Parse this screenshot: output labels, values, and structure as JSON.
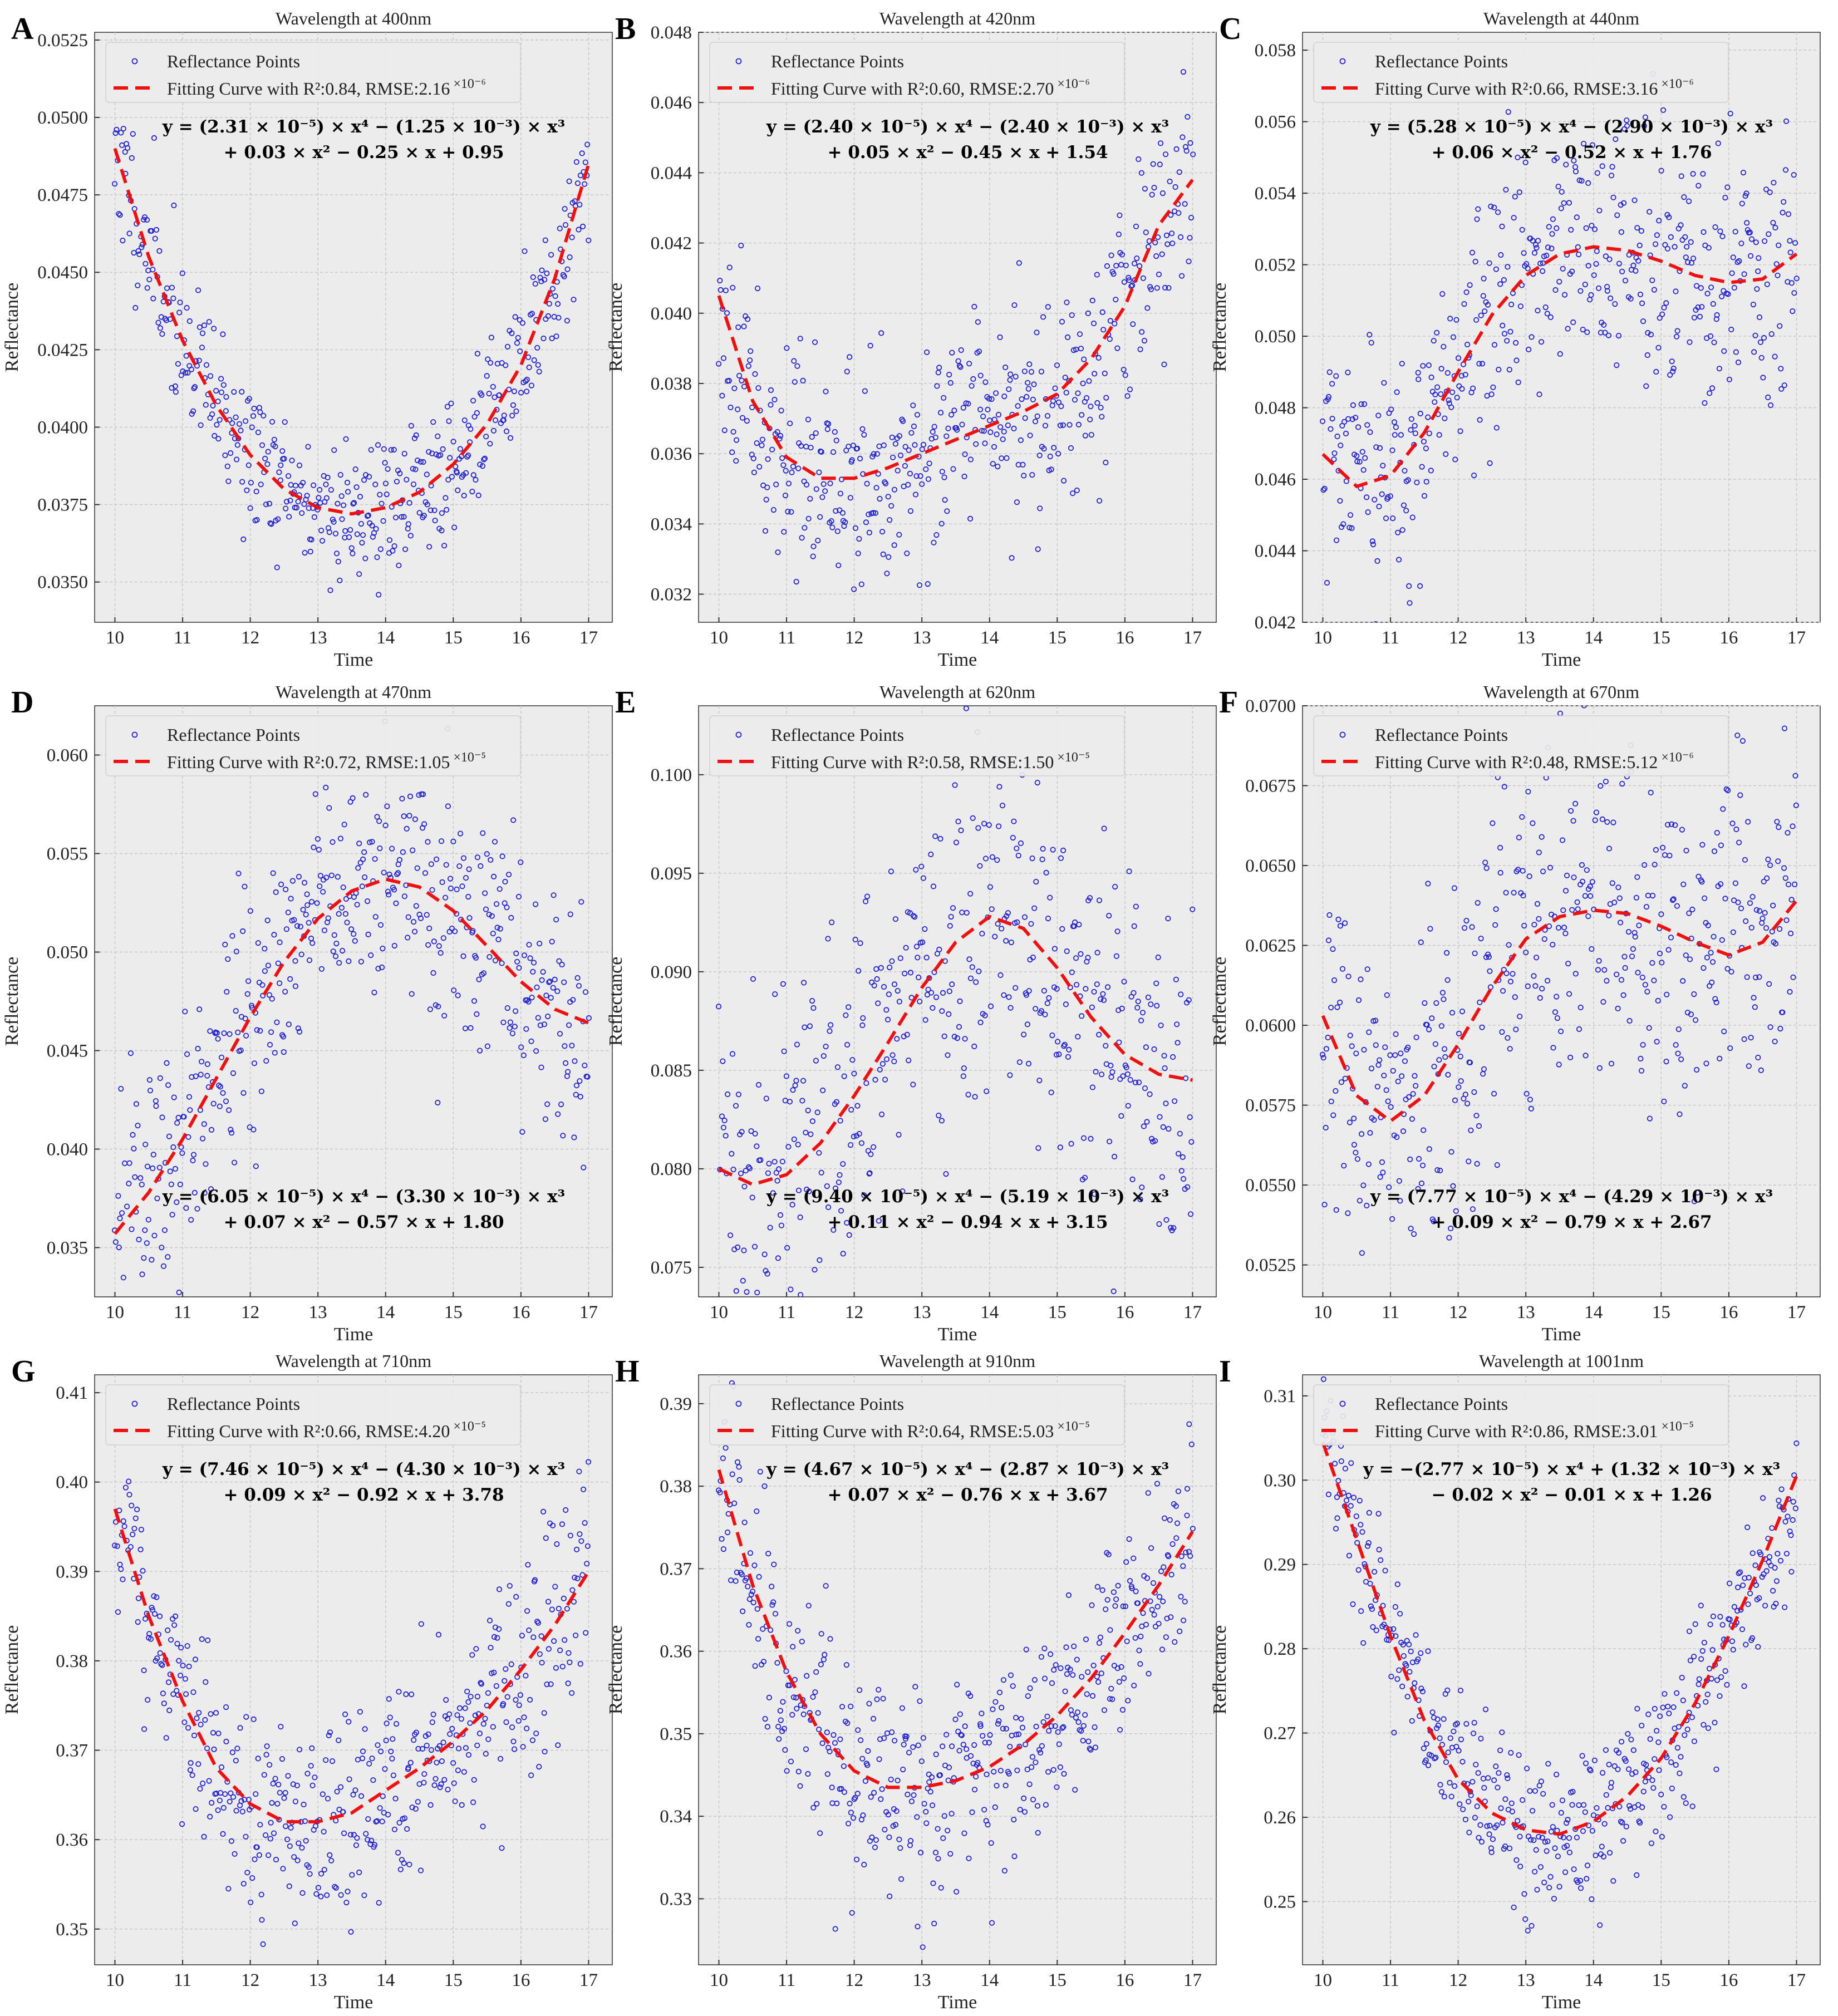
{
  "figure": {
    "legend_points_label": "Reflectance Points"
  },
  "chart_data": [
    {
      "type": "scatter",
      "label": "A",
      "title": "Wavelength at 400nm",
      "xlabel": "Time",
      "ylabel": "Reflectance",
      "xlim": [
        9.7,
        17.35
      ],
      "ylim": [
        0.0337,
        0.05275
      ],
      "yticks": [
        0.035,
        0.0375,
        0.04,
        0.0425,
        0.045,
        0.0475,
        0.05,
        0.0525
      ],
      "ytick_labels": [
        "0.0350",
        "0.0375",
        "0.0400",
        "0.0425",
        "0.0450",
        "0.0475",
        "0.0500",
        "0.0525"
      ],
      "xticks": [
        10,
        11,
        12,
        13,
        14,
        15,
        16,
        17
      ],
      "legend_fit_label": "Fitting Curve with R²:0.84, RMSE:2.16",
      "legend_exp": "×10⁻⁶",
      "r2": 0.84,
      "rmse": 2.16e-06,
      "equation_line1": "y = (2.31 × 10⁻⁵) × x⁴ − (1.25 × 10⁻³) × x³",
      "equation_line2": "+ 0.03 × x² − 0.25 × x + 0.95",
      "equation_position": "top",
      "fit_curve": {
        "t": [
          10,
          10.5,
          11,
          11.5,
          12,
          12.5,
          13,
          13.5,
          14,
          14.5,
          15,
          15.5,
          16,
          16.5,
          17
        ],
        "y": [
          0.049,
          0.0455,
          0.0428,
          0.0407,
          0.0391,
          0.038,
          0.0374,
          0.0372,
          0.0374,
          0.0379,
          0.0388,
          0.0401,
          0.042,
          0.0448,
          0.0485
        ]
      },
      "noise_sd": 0.0012,
      "seed": 11
    },
    {
      "type": "scatter",
      "label": "B",
      "title": "Wavelength at 420nm",
      "xlabel": "Time",
      "ylabel": "Reflectance",
      "xlim": [
        9.7,
        17.35
      ],
      "ylim": [
        0.0312,
        0.048
      ],
      "yticks": [
        0.032,
        0.034,
        0.036,
        0.038,
        0.04,
        0.042,
        0.044,
        0.046,
        0.048
      ],
      "ytick_labels": [
        "0.032",
        "0.034",
        "0.036",
        "0.038",
        "0.040",
        "0.042",
        "0.044",
        "0.046",
        "0.048"
      ],
      "xticks": [
        10,
        11,
        12,
        13,
        14,
        15,
        16,
        17
      ],
      "legend_fit_label": "Fitting Curve with R²:0.60, RMSE:2.70",
      "legend_exp": "×10⁻⁶",
      "r2": 0.6,
      "rmse": 2.7e-06,
      "equation_line1": "y = (2.40 × 10⁻⁵) × x⁴ − (2.40 × 10⁻³) × x³",
      "equation_line2": "+ 0.05 × x² − 0.45 × x + 1.54",
      "equation_position": "top",
      "fit_curve": {
        "t": [
          10,
          10.5,
          11,
          11.5,
          12,
          12.5,
          13,
          13.5,
          14,
          14.5,
          15,
          15.5,
          16,
          16.5,
          17
        ],
        "y": [
          0.0405,
          0.0375,
          0.0359,
          0.0353,
          0.0353,
          0.0356,
          0.036,
          0.0364,
          0.0368,
          0.0372,
          0.0377,
          0.0387,
          0.0402,
          0.0425,
          0.0438
        ]
      },
      "noise_sd": 0.0015,
      "seed": 23
    },
    {
      "type": "scatter",
      "label": "C",
      "title": "Wavelength at 440nm",
      "xlabel": "Time",
      "ylabel": "Reflectance",
      "xlim": [
        9.7,
        17.35
      ],
      "ylim": [
        0.042,
        0.0585
      ],
      "yticks": [
        0.042,
        0.044,
        0.046,
        0.048,
        0.05,
        0.052,
        0.054,
        0.056,
        0.058
      ],
      "ytick_labels": [
        "0.042",
        "0.044",
        "0.046",
        "0.048",
        "0.050",
        "0.052",
        "0.054",
        "0.056",
        "0.058"
      ],
      "xticks": [
        10,
        11,
        12,
        13,
        14,
        15,
        16,
        17
      ],
      "legend_fit_label": "Fitting Curve with R²:0.66, RMSE:3.16",
      "legend_exp": "×10⁻⁶",
      "r2": 0.66,
      "rmse": 3.16e-06,
      "equation_line1": "y = (5.28 × 10⁻⁵) × x⁴ − (2.90 × 10⁻³) × x³",
      "equation_line2": "+ 0.06 × x² − 0.52 × x + 1.76",
      "equation_position": "top",
      "fit_curve": {
        "t": [
          10,
          10.5,
          11,
          11.5,
          12,
          12.5,
          13,
          13.5,
          14,
          14.5,
          15,
          15.5,
          16,
          16.5,
          17
        ],
        "y": [
          0.0467,
          0.0458,
          0.0461,
          0.0473,
          0.049,
          0.0506,
          0.0517,
          0.0523,
          0.0525,
          0.0524,
          0.0521,
          0.0517,
          0.0515,
          0.0516,
          0.0523
        ]
      },
      "noise_sd": 0.0017,
      "seed": 37
    },
    {
      "type": "scatter",
      "label": "D",
      "title": "Wavelength at 470nm",
      "xlabel": "Time",
      "ylabel": "Reflectance",
      "xlim": [
        9.7,
        17.35
      ],
      "ylim": [
        0.0325,
        0.0625
      ],
      "yticks": [
        0.035,
        0.04,
        0.045,
        0.05,
        0.055,
        0.06
      ],
      "ytick_labels": [
        "0.035",
        "0.040",
        "0.045",
        "0.050",
        "0.055",
        "0.060"
      ],
      "xticks": [
        10,
        11,
        12,
        13,
        14,
        15,
        16,
        17
      ],
      "legend_fit_label": "Fitting Curve with R²:0.72, RMSE:1.05",
      "legend_exp": "×10⁻⁵",
      "r2": 0.72,
      "rmse": 1.05e-05,
      "equation_line1": "y = (6.05 × 10⁻⁵) × x⁴ − (3.30 × 10⁻³) × x³",
      "equation_line2": "+ 0.07 × x² − 0.57 × x + 1.80",
      "equation_position": "bottom",
      "fit_curve": {
        "t": [
          10,
          10.5,
          11,
          11.5,
          12,
          12.5,
          13,
          13.5,
          14,
          14.5,
          15,
          15.5,
          16,
          16.5,
          17
        ],
        "y": [
          0.0357,
          0.0378,
          0.0405,
          0.0436,
          0.0467,
          0.0495,
          0.0517,
          0.0531,
          0.0537,
          0.0533,
          0.0521,
          0.0503,
          0.0485,
          0.0471,
          0.0464
        ]
      },
      "noise_sd": 0.0032,
      "seed": 41
    },
    {
      "type": "scatter",
      "label": "E",
      "title": "Wavelength at 620nm",
      "xlabel": "Time",
      "ylabel": "Reflectance",
      "xlim": [
        9.7,
        17.35
      ],
      "ylim": [
        0.0735,
        0.1035
      ],
      "yticks": [
        0.075,
        0.08,
        0.085,
        0.09,
        0.095,
        0.1
      ],
      "ytick_labels": [
        "0.075",
        "0.080",
        "0.085",
        "0.090",
        "0.095",
        "0.100"
      ],
      "xticks": [
        10,
        11,
        12,
        13,
        14,
        15,
        16,
        17
      ],
      "legend_fit_label": "Fitting Curve with R²:0.58, RMSE:1.50",
      "legend_exp": "×10⁻⁵",
      "r2": 0.58,
      "rmse": 1.5e-05,
      "equation_line1": "y = (9.40 × 10⁻⁵) × x⁴ − (5.19 × 10⁻³) × x³",
      "equation_line2": "+ 0.11 × x² − 0.94 × x + 3.15",
      "equation_position": "bottom",
      "fit_curve": {
        "t": [
          10,
          10.5,
          11,
          11.5,
          12,
          12.5,
          13,
          13.5,
          14,
          14.5,
          15,
          15.5,
          16,
          16.5,
          17
        ],
        "y": [
          0.08,
          0.0792,
          0.0797,
          0.0813,
          0.0837,
          0.0864,
          0.0892,
          0.0915,
          0.0928,
          0.0922,
          0.0902,
          0.0877,
          0.0858,
          0.0848,
          0.0845
        ]
      },
      "noise_sd": 0.0048,
      "seed": 53
    },
    {
      "type": "scatter",
      "label": "F",
      "title": "Wavelength at 670nm",
      "xlabel": "Time",
      "ylabel": "Reflectance",
      "xlim": [
        9.7,
        17.35
      ],
      "ylim": [
        0.0515,
        0.07
      ],
      "yticks": [
        0.0525,
        0.055,
        0.0575,
        0.06,
        0.0625,
        0.065,
        0.0675,
        0.07
      ],
      "ytick_labels": [
        "0.0525",
        "0.0550",
        "0.0575",
        "0.0600",
        "0.0625",
        "0.0650",
        "0.0675",
        "0.0700"
      ],
      "xticks": [
        10,
        11,
        12,
        13,
        14,
        15,
        16,
        17
      ],
      "legend_fit_label": "Fitting Curve with R²:0.48, RMSE:5.12",
      "legend_exp": "×10⁻⁶",
      "r2": 0.48,
      "rmse": 5.12e-06,
      "equation_line1": "y = (7.77 × 10⁻⁵) × x⁴ − (4.29 × 10⁻³) × x³",
      "equation_line2": "+ 0.09 × x² − 0.79 × x + 2.67",
      "equation_position": "bottom",
      "fit_curve": {
        "t": [
          10,
          10.5,
          11,
          11.5,
          12,
          12.5,
          13,
          13.5,
          14,
          14.5,
          15,
          15.5,
          16,
          16.5,
          17
        ],
        "y": [
          0.0603,
          0.0578,
          0.057,
          0.0578,
          0.0594,
          0.0612,
          0.0627,
          0.0634,
          0.0636,
          0.0635,
          0.0631,
          0.0626,
          0.0622,
          0.0626,
          0.0639
        ]
      },
      "noise_sd": 0.0025,
      "seed": 67
    },
    {
      "type": "scatter",
      "label": "G",
      "title": "Wavelength at 710nm",
      "xlabel": "Time",
      "ylabel": "Reflectance",
      "xlim": [
        9.7,
        17.35
      ],
      "ylim": [
        0.346,
        0.412
      ],
      "yticks": [
        0.35,
        0.36,
        0.37,
        0.38,
        0.39,
        0.4,
        0.41
      ],
      "ytick_labels": [
        "0.35",
        "0.36",
        "0.37",
        "0.38",
        "0.39",
        "0.40",
        "0.41"
      ],
      "xticks": [
        10,
        11,
        12,
        13,
        14,
        15,
        16,
        17
      ],
      "legend_fit_label": "Fitting Curve with R²:0.66, RMSE:4.20",
      "legend_exp": "×10⁻⁵",
      "r2": 0.66,
      "rmse": 4.2e-05,
      "equation_line1": "y = (7.46 × 10⁻⁵) × x⁴ − (4.30 × 10⁻³) × x³",
      "equation_line2": "+ 0.09 × x² − 0.92 × x + 3.78",
      "equation_position": "top",
      "fit_curve": {
        "t": [
          10,
          10.5,
          11,
          11.5,
          12,
          12.5,
          13,
          13.5,
          14,
          14.5,
          15,
          15.5,
          16,
          16.5,
          17
        ],
        "y": [
          0.397,
          0.385,
          0.3755,
          0.368,
          0.364,
          0.362,
          0.362,
          0.363,
          0.3655,
          0.368,
          0.371,
          0.3745,
          0.379,
          0.384,
          0.39
        ]
      },
      "noise_sd": 0.0055,
      "seed": 71
    },
    {
      "type": "scatter",
      "label": "H",
      "title": "Wavelength at 910nm",
      "xlabel": "Time",
      "ylabel": "Reflectance",
      "xlim": [
        9.7,
        17.35
      ],
      "ylim": [
        0.322,
        0.3935
      ],
      "yticks": [
        0.33,
        0.34,
        0.35,
        0.36,
        0.37,
        0.38,
        0.39
      ],
      "ytick_labels": [
        "0.33",
        "0.34",
        "0.35",
        "0.36",
        "0.37",
        "0.38",
        "0.39"
      ],
      "xticks": [
        10,
        11,
        12,
        13,
        14,
        15,
        16,
        17
      ],
      "legend_fit_label": "Fitting Curve with R²:0.64, RMSE:5.03",
      "legend_exp": "×10⁻⁵",
      "r2": 0.64,
      "rmse": 5.03e-05,
      "equation_line1": "y = (4.67 × 10⁻⁵) × x⁴ − (2.87 × 10⁻³) × x³",
      "equation_line2": "+ 0.07 × x² − 0.76 × x + 3.67",
      "equation_position": "top",
      "fit_curve": {
        "t": [
          10,
          10.5,
          11,
          11.5,
          12,
          12.5,
          13,
          13.5,
          14,
          14.5,
          15,
          15.5,
          16,
          16.5,
          17
        ],
        "y": [
          0.382,
          0.368,
          0.3575,
          0.35,
          0.3455,
          0.3435,
          0.3435,
          0.3443,
          0.346,
          0.3487,
          0.3522,
          0.3567,
          0.3622,
          0.368,
          0.3745
        ]
      },
      "noise_sd": 0.0065,
      "seed": 83
    },
    {
      "type": "scatter",
      "label": "I",
      "title": "Wavelength at 1001nm",
      "xlabel": "Time",
      "ylabel": "Reflectance",
      "xlim": [
        9.7,
        17.35
      ],
      "ylim": [
        0.2425,
        0.3125
      ],
      "yticks": [
        0.25,
        0.26,
        0.27,
        0.28,
        0.29,
        0.3,
        0.31
      ],
      "ytick_labels": [
        "0.25",
        "0.26",
        "0.27",
        "0.28",
        "0.29",
        "0.30",
        "0.31"
      ],
      "xticks": [
        10,
        11,
        12,
        13,
        14,
        15,
        16,
        17
      ],
      "legend_fit_label": "Fitting Curve with R²:0.86, RMSE:3.01",
      "legend_exp": "×10⁻⁵",
      "r2": 0.86,
      "rmse": 3.01e-05,
      "equation_line1": "y = −(2.77 × 10⁻⁵) × x⁴ + (1.32 × 10⁻³) × x³",
      "equation_line2": "− 0.02 × x² − 0.01 × x + 1.26",
      "equation_position": "top",
      "fit_curve": {
        "t": [
          10,
          10.5,
          11,
          11.5,
          12,
          12.5,
          13,
          13.5,
          14,
          14.5,
          15,
          15.5,
          16,
          16.5,
          17
        ],
        "y": [
          0.3045,
          0.293,
          0.2815,
          0.2715,
          0.2645,
          0.2605,
          0.2585,
          0.258,
          0.2595,
          0.2625,
          0.267,
          0.2735,
          0.2815,
          0.2905,
          0.3005
        ]
      },
      "noise_sd": 0.005,
      "seed": 97
    }
  ]
}
